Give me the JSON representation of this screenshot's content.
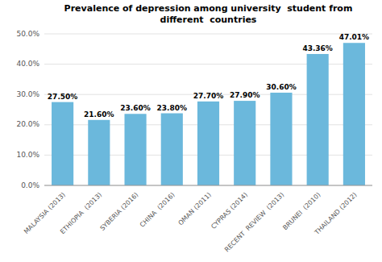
{
  "chart_data": {
    "type": "bar",
    "title": "Prevalence of depression among university  student from\ndifferent  countries",
    "categories": [
      "MALAYSIA (2013)",
      "ETHIOPIA  (2013)",
      "SYBERIA (2016)",
      "CHINA  (2016)",
      "OMAN (2011)",
      "CYPRAS (2014)",
      "RECENT  REVIEW  (2013)",
      "BRUNEI  (2010)",
      "THAILAND (2012)"
    ],
    "values": [
      27.5,
      21.6,
      23.6,
      23.8,
      27.7,
      27.9,
      30.6,
      43.36,
      47.01
    ],
    "value_labels": [
      "27.50%",
      "21.60%",
      "23.60%",
      "23.80%",
      "27.70%",
      "27.90%",
      "30.60%",
      "43.36%",
      "47.01%"
    ],
    "data_labels": true,
    "color": "#6BB8DC",
    "ylim": [
      0,
      50
    ],
    "yticks": [
      {
        "value": 0,
        "label": "0.0%"
      },
      {
        "value": 10,
        "label": "10.0%"
      },
      {
        "value": 20,
        "label": "20.0%"
      },
      {
        "value": 30,
        "label": "30.0%"
      },
      {
        "value": 40,
        "label": "40.0%"
      },
      {
        "value": 50,
        "label": "50.0%"
      }
    ],
    "grid": true
  }
}
